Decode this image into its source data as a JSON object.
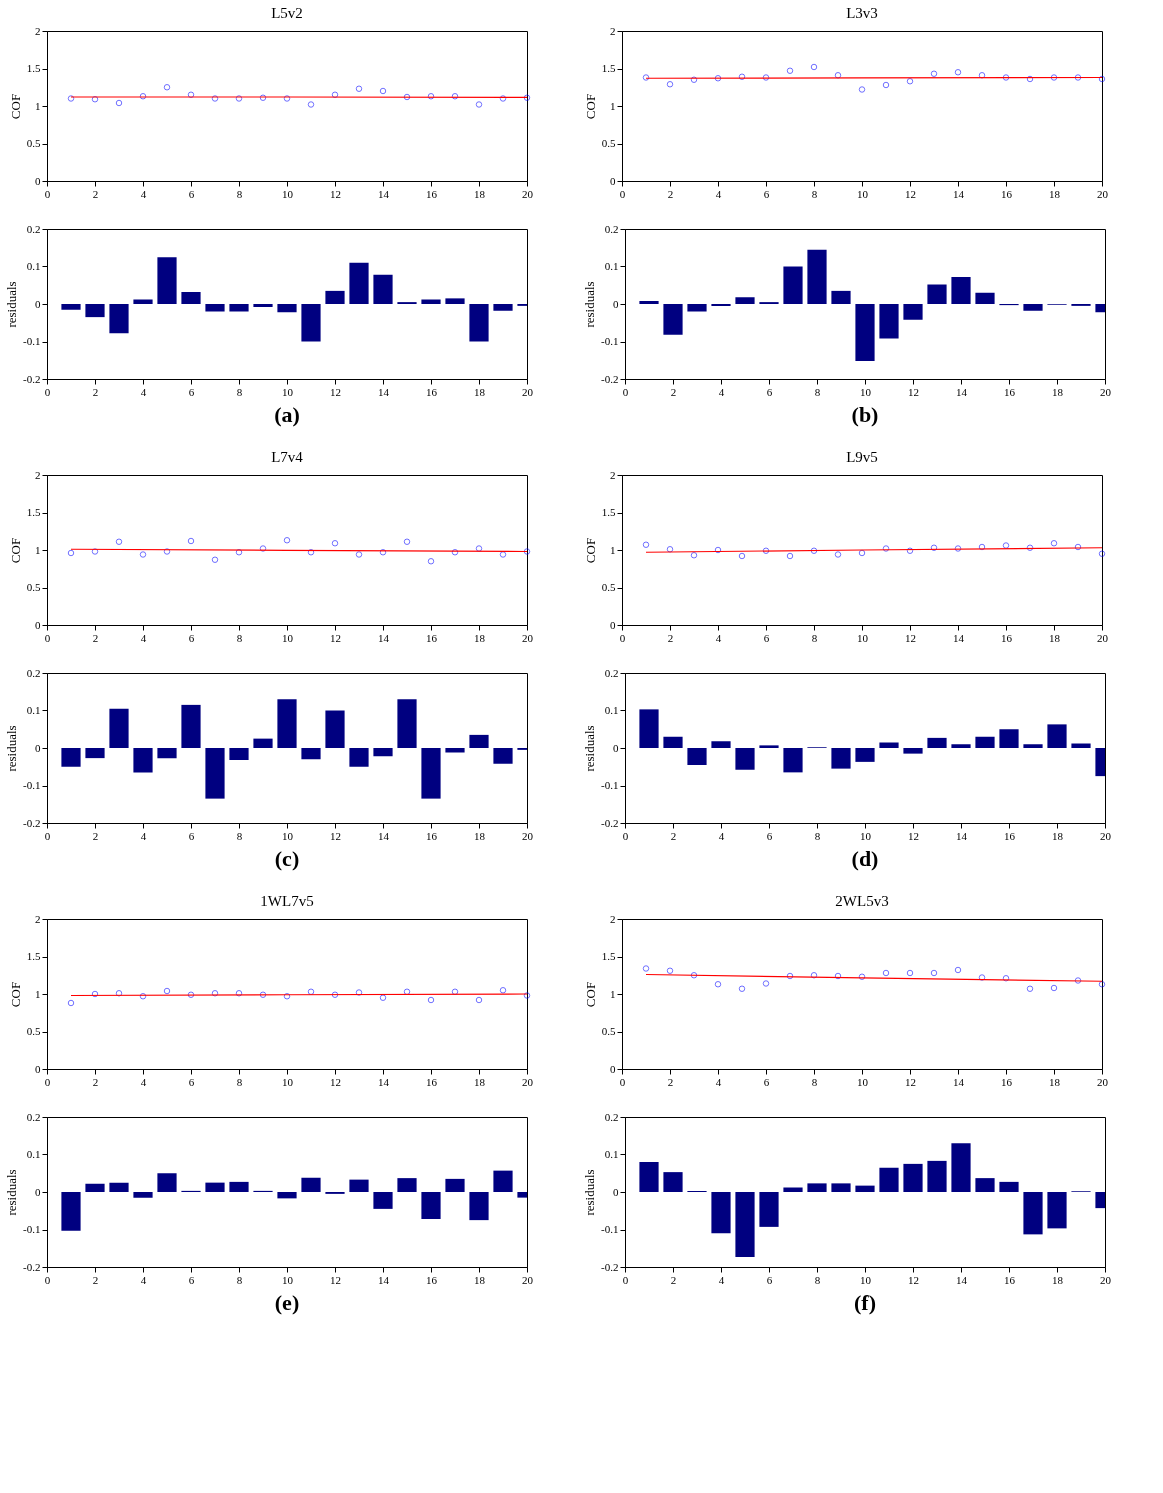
{
  "chart_data": [
    {
      "type": "scatter",
      "title": "L5v2",
      "ylabel": "COF",
      "x": [
        1,
        2,
        3,
        4,
        5,
        6,
        7,
        8,
        9,
        10,
        11,
        12,
        13,
        14,
        15,
        16,
        17,
        18,
        19,
        20
      ],
      "xlim": [
        0,
        20
      ],
      "xticks": [
        0,
        2,
        4,
        6,
        8,
        10,
        12,
        14,
        16,
        18,
        20
      ],
      "ylim": [
        0,
        2
      ],
      "yticks": [
        0,
        0.5,
        1,
        1.5,
        2
      ],
      "series": [
        {
          "color": "#0000ff",
          "marker": "circle",
          "values": [
            1.1,
            1.09,
            1.04,
            1.13,
            1.25,
            1.15,
            1.1,
            1.1,
            1.11,
            1.1,
            1.02,
            1.15,
            1.23,
            1.2,
            1.12,
            1.13,
            1.13,
            1.02,
            1.1,
            1.11
          ]
        },
        {
          "type": "line",
          "color": "#ff0000",
          "x": [
            1,
            10,
            20
          ],
          "values": [
            1.12,
            1.12,
            1.115
          ]
        }
      ]
    },
    {
      "type": "scatter",
      "title": "L3v3",
      "ylabel": "COF",
      "x": [
        1,
        2,
        3,
        4,
        5,
        6,
        7,
        8,
        9,
        10,
        11,
        12,
        13,
        14,
        15,
        16,
        17,
        18,
        19,
        20
      ],
      "xlim": [
        0,
        20
      ],
      "xticks": [
        0,
        2,
        4,
        6,
        8,
        10,
        12,
        14,
        16,
        18,
        20
      ],
      "ylim": [
        0,
        2
      ],
      "yticks": [
        0,
        0.5,
        1,
        1.5,
        2
      ],
      "series": [
        {
          "color": "#0000ff",
          "marker": "circle",
          "values": [
            1.38,
            1.29,
            1.35,
            1.37,
            1.39,
            1.38,
            1.47,
            1.52,
            1.41,
            1.22,
            1.28,
            1.33,
            1.43,
            1.45,
            1.41,
            1.38,
            1.36,
            1.38,
            1.38,
            1.36
          ]
        },
        {
          "type": "line",
          "color": "#ff0000",
          "x": [
            1,
            10,
            20
          ],
          "values": [
            1.37,
            1.375,
            1.38
          ]
        }
      ]
    },
    {
      "type": "bar",
      "ylabel": "residuals",
      "annotations": [
        "(a)"
      ],
      "color": "#000080",
      "x": [
        1,
        2,
        3,
        4,
        5,
        6,
        7,
        8,
        9,
        10,
        11,
        12,
        13,
        14,
        15,
        16,
        17,
        18,
        19,
        20
      ],
      "xlim": [
        0,
        20
      ],
      "xticks": [
        0,
        2,
        4,
        6,
        8,
        10,
        12,
        14,
        16,
        18,
        20
      ],
      "ylim": [
        -0.2,
        0.2
      ],
      "yticks": [
        -0.2,
        -0.1,
        0,
        0.1,
        0.2
      ],
      "values": [
        -0.015,
        -0.035,
        -0.078,
        0.012,
        0.125,
        0.032,
        -0.02,
        -0.02,
        -0.008,
        -0.022,
        -0.1,
        0.035,
        0.11,
        0.078,
        0.005,
        0.012,
        0.015,
        -0.1,
        -0.018,
        -0.005
      ]
    },
    {
      "type": "bar",
      "ylabel": "residuals",
      "annotations": [
        "(b)"
      ],
      "color": "#000080",
      "x": [
        1,
        2,
        3,
        4,
        5,
        6,
        7,
        8,
        9,
        10,
        11,
        12,
        13,
        14,
        15,
        16,
        17,
        18,
        19,
        20
      ],
      "xlim": [
        0,
        20
      ],
      "xticks": [
        0,
        2,
        4,
        6,
        8,
        10,
        12,
        14,
        16,
        18,
        20
      ],
      "ylim": [
        -0.2,
        0.2
      ],
      "yticks": [
        -0.2,
        -0.1,
        0,
        0.1,
        0.2
      ],
      "values": [
        0.008,
        -0.082,
        -0.02,
        -0.005,
        0.018,
        0.005,
        0.1,
        0.145,
        0.035,
        -0.152,
        -0.092,
        -0.042,
        0.052,
        0.072,
        0.03,
        -0.003,
        -0.018,
        -0.002,
        -0.005,
        -0.022
      ]
    },
    {
      "type": "scatter",
      "title": "L7v4",
      "ylabel": "COF",
      "x": [
        1,
        2,
        3,
        4,
        5,
        6,
        7,
        8,
        9,
        10,
        11,
        12,
        13,
        14,
        15,
        16,
        17,
        18,
        19,
        20
      ],
      "xlim": [
        0,
        20
      ],
      "xticks": [
        0,
        2,
        4,
        6,
        8,
        10,
        12,
        14,
        16,
        18,
        20
      ],
      "ylim": [
        0,
        2
      ],
      "yticks": [
        0,
        0.5,
        1,
        1.5,
        2
      ],
      "series": [
        {
          "color": "#0000ff",
          "marker": "circle",
          "values": [
            0.96,
            0.98,
            1.11,
            0.94,
            0.98,
            1.12,
            0.87,
            0.97,
            1.02,
            1.13,
            0.97,
            1.09,
            0.94,
            0.97,
            1.11,
            0.85,
            0.97,
            1.02,
            0.94,
            0.98
          ]
        },
        {
          "type": "line",
          "color": "#ff0000",
          "x": [
            1,
            10,
            20
          ],
          "values": [
            1.01,
            0.995,
            0.98
          ]
        }
      ]
    },
    {
      "type": "scatter",
      "title": "L9v5",
      "ylabel": "COF",
      "x": [
        1,
        2,
        3,
        4,
        5,
        6,
        7,
        8,
        9,
        10,
        11,
        12,
        13,
        14,
        15,
        16,
        17,
        18,
        19,
        20
      ],
      "xlim": [
        0,
        20
      ],
      "xticks": [
        0,
        2,
        4,
        6,
        8,
        10,
        12,
        14,
        16,
        18,
        20
      ],
      "ylim": [
        0,
        2
      ],
      "yticks": [
        0,
        0.5,
        1,
        1.5,
        2
      ],
      "series": [
        {
          "color": "#0000ff",
          "marker": "circle",
          "values": [
            1.07,
            1.01,
            0.93,
            1.0,
            0.92,
            0.99,
            0.92,
            0.99,
            0.94,
            0.96,
            1.02,
            0.99,
            1.03,
            1.02,
            1.04,
            1.06,
            1.03,
            1.09,
            1.04,
            0.95
          ]
        },
        {
          "type": "line",
          "color": "#ff0000",
          "x": [
            1,
            10,
            20
          ],
          "values": [
            0.97,
            1.0,
            1.03
          ]
        }
      ]
    },
    {
      "type": "bar",
      "ylabel": "residuals",
      "annotations": [
        "(c)"
      ],
      "color": "#000080",
      "x": [
        1,
        2,
        3,
        4,
        5,
        6,
        7,
        8,
        9,
        10,
        11,
        12,
        13,
        14,
        15,
        16,
        17,
        18,
        19,
        20
      ],
      "xlim": [
        0,
        20
      ],
      "xticks": [
        0,
        2,
        4,
        6,
        8,
        10,
        12,
        14,
        16,
        18,
        20
      ],
      "ylim": [
        -0.2,
        0.2
      ],
      "yticks": [
        -0.2,
        -0.1,
        0,
        0.1,
        0.2
      ],
      "values": [
        -0.05,
        -0.027,
        0.105,
        -0.065,
        -0.027,
        0.115,
        -0.135,
        -0.032,
        0.025,
        0.13,
        -0.03,
        0.1,
        -0.05,
        -0.022,
        0.13,
        -0.135,
        -0.012,
        0.035,
        -0.042,
        -0.005
      ]
    },
    {
      "type": "bar",
      "ylabel": "residuals",
      "annotations": [
        "(d)"
      ],
      "color": "#000080",
      "x": [
        1,
        2,
        3,
        4,
        5,
        6,
        7,
        8,
        9,
        10,
        11,
        12,
        13,
        14,
        15,
        16,
        17,
        18,
        19,
        20
      ],
      "xlim": [
        0,
        20
      ],
      "xticks": [
        0,
        2,
        4,
        6,
        8,
        10,
        12,
        14,
        16,
        18,
        20
      ],
      "ylim": [
        -0.2,
        0.2
      ],
      "yticks": [
        -0.2,
        -0.1,
        0,
        0.1,
        0.2
      ],
      "values": [
        0.103,
        0.03,
        -0.045,
        0.018,
        -0.058,
        0.007,
        -0.065,
        0.002,
        -0.055,
        -0.037,
        0.015,
        -0.015,
        0.027,
        0.01,
        0.03,
        0.05,
        0.01,
        0.063,
        0.012,
        -0.075
      ]
    },
    {
      "type": "scatter",
      "title": "1WL7v5",
      "ylabel": "COF",
      "x": [
        1,
        2,
        3,
        4,
        5,
        6,
        7,
        8,
        9,
        10,
        11,
        12,
        13,
        14,
        15,
        16,
        17,
        18,
        19,
        20
      ],
      "xlim": [
        0,
        20
      ],
      "xticks": [
        0,
        2,
        4,
        6,
        8,
        10,
        12,
        14,
        16,
        18,
        20
      ],
      "ylim": [
        0,
        2
      ],
      "yticks": [
        0,
        0.5,
        1,
        1.5,
        2
      ],
      "series": [
        {
          "color": "#0000ff",
          "marker": "circle",
          "values": [
            0.88,
            1.0,
            1.01,
            0.97,
            1.04,
            0.99,
            1.01,
            1.01,
            0.99,
            0.97,
            1.03,
            0.99,
            1.02,
            0.95,
            1.03,
            0.92,
            1.03,
            0.92,
            1.05,
            0.98
          ]
        },
        {
          "type": "line",
          "color": "#ff0000",
          "x": [
            1,
            10,
            20
          ],
          "values": [
            0.98,
            0.99,
            1.0
          ]
        }
      ]
    },
    {
      "type": "scatter",
      "title": "2WL5v3",
      "ylabel": "COF",
      "x": [
        1,
        2,
        3,
        4,
        5,
        6,
        7,
        8,
        9,
        10,
        11,
        12,
        13,
        14,
        15,
        16,
        17,
        18,
        19,
        20
      ],
      "xlim": [
        0,
        20
      ],
      "xticks": [
        0,
        2,
        4,
        6,
        8,
        10,
        12,
        14,
        16,
        18,
        20
      ],
      "ylim": [
        0,
        2
      ],
      "yticks": [
        0,
        0.5,
        1,
        1.5,
        2
      ],
      "series": [
        {
          "color": "#0000ff",
          "marker": "circle",
          "values": [
            1.34,
            1.31,
            1.25,
            1.13,
            1.07,
            1.14,
            1.24,
            1.25,
            1.24,
            1.23,
            1.28,
            1.28,
            1.28,
            1.32,
            1.22,
            1.21,
            1.07,
            1.08,
            1.18,
            1.13
          ]
        },
        {
          "type": "line",
          "color": "#ff0000",
          "x": [
            1,
            10,
            20
          ],
          "values": [
            1.26,
            1.215,
            1.17
          ]
        }
      ]
    },
    {
      "type": "bar",
      "ylabel": "residuals",
      "annotations": [
        "(e)"
      ],
      "color": "#000080",
      "x": [
        1,
        2,
        3,
        4,
        5,
        6,
        7,
        8,
        9,
        10,
        11,
        12,
        13,
        14,
        15,
        16,
        17,
        18,
        19,
        20
      ],
      "xlim": [
        0,
        20
      ],
      "xticks": [
        0,
        2,
        4,
        6,
        8,
        10,
        12,
        14,
        16,
        18,
        20
      ],
      "ylim": [
        -0.2,
        0.2
      ],
      "yticks": [
        -0.2,
        -0.1,
        0,
        0.1,
        0.2
      ],
      "values": [
        -0.103,
        0.022,
        0.025,
        -0.015,
        0.05,
        0.003,
        0.025,
        0.027,
        0.003,
        -0.017,
        0.038,
        -0.005,
        0.033,
        -0.045,
        0.037,
        -0.072,
        0.035,
        -0.075,
        0.057,
        -0.015
      ]
    },
    {
      "type": "bar",
      "ylabel": "residuals",
      "annotations": [
        "(f)"
      ],
      "color": "#000080",
      "x": [
        1,
        2,
        3,
        4,
        5,
        6,
        7,
        8,
        9,
        10,
        11,
        12,
        13,
        14,
        15,
        16,
        17,
        18,
        19,
        20
      ],
      "xlim": [
        0,
        20
      ],
      "xticks": [
        0,
        2,
        4,
        6,
        8,
        10,
        12,
        14,
        16,
        18,
        20
      ],
      "ylim": [
        -0.2,
        0.2
      ],
      "yticks": [
        -0.2,
        -0.1,
        0,
        0.1,
        0.2
      ],
      "values": [
        0.08,
        0.053,
        0.003,
        -0.11,
        -0.173,
        -0.093,
        0.012,
        0.023,
        0.023,
        0.017,
        0.065,
        0.075,
        0.083,
        0.13,
        0.037,
        0.027,
        -0.113,
        -0.097,
        0.002,
        -0.043
      ]
    }
  ]
}
